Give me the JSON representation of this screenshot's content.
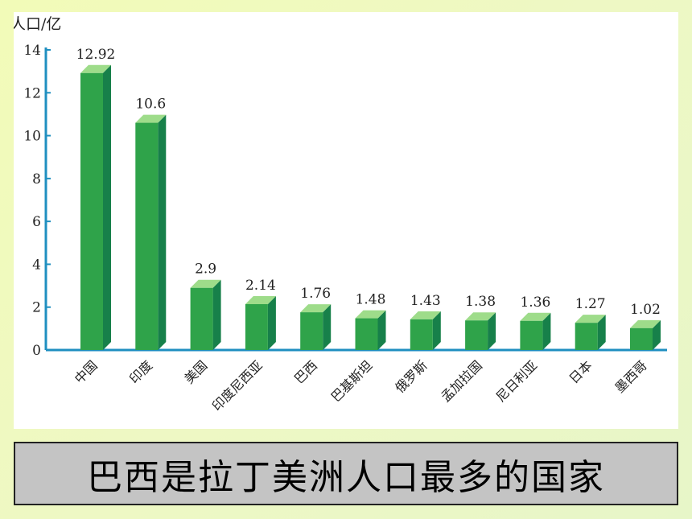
{
  "chart_data": {
    "type": "bar",
    "ylabel": "人口/亿",
    "ylim": [
      0,
      14
    ],
    "yticks": [
      0,
      2,
      4,
      6,
      8,
      10,
      12,
      14
    ],
    "categories": [
      "中国",
      "印度",
      "美国",
      "印度尼西亚",
      "巴西",
      "巴基斯坦",
      "俄罗斯",
      "孟加拉国",
      "尼日利亚",
      "日本",
      "墨西哥"
    ],
    "values": [
      12.92,
      10.6,
      2.9,
      2.14,
      1.76,
      1.48,
      1.43,
      1.38,
      1.36,
      1.27,
      1.02
    ],
    "value_labels": [
      "12.92",
      "10.6",
      "2.9",
      "2.14",
      "1.76",
      "1.48",
      "1.43",
      "1.38",
      "1.36",
      "1.27",
      "1.02"
    ],
    "colors": {
      "bar_front": "#2fa34a",
      "bar_side": "#17804a",
      "bar_top": "#9edc8a",
      "axis": "#1f8fc0"
    }
  },
  "caption": "巴西是拉丁美洲人口最多的国家"
}
